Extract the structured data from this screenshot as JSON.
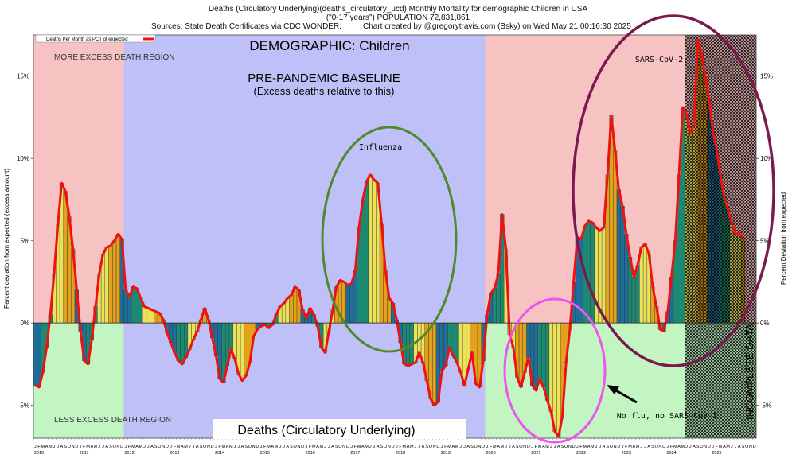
{
  "header": {
    "line1": "Deaths (Circulatory Underlying)(deaths_circulatory_ucd) Monthly Mortality for demographic Children in USA",
    "line2": "(\"0-17 years\") POPULATION 72,831,861",
    "sources": "Sources: State Death Certificates via CDC WONDER.",
    "credit": "Chart created by @gregorytravis.com (Bsky) on Wed May 21 00:16:30 2025"
  },
  "chart_data": {
    "type": "bar",
    "title": "Deaths (Circulatory Underlying)(deaths_circulatory_ucd) Monthly Mortality for demographic Children in USA",
    "ylabel": "Percent deviation from expected (excess amount)",
    "ylabel_right": "Percent Deviation from expected",
    "legend": "Deaths Per Month as PCT of expected",
    "ylim": [
      -7,
      17.5
    ],
    "yticks": [
      -5,
      0,
      5,
      10,
      15
    ],
    "ytick_labels": [
      "-5%",
      "0%",
      "5%",
      "10%",
      "15%"
    ],
    "start": "2010-01",
    "month_letters": [
      "J",
      "F",
      "M",
      "A",
      "M",
      "J",
      "J",
      "A",
      "S",
      "O",
      "N",
      "D"
    ],
    "years": [
      "2010",
      "2011",
      "2012",
      "2013",
      "2014",
      "2015",
      "2016",
      "2017",
      "2018",
      "2019",
      "2020",
      "2021",
      "2022",
      "2023",
      "2024",
      "2025"
    ],
    "values": [
      -3.8,
      -3.9,
      -3.0,
      -1.5,
      0.5,
      3.0,
      6.0,
      8.5,
      8.0,
      6.5,
      4.5,
      2.0,
      -0.5,
      -2.3,
      -2.5,
      -1.0,
      1.0,
      3.0,
      4.2,
      4.6,
      4.7,
      5.0,
      5.4,
      5.1,
      2.0,
      1.6,
      2.2,
      2.1,
      1.5,
      1.0,
      0.9,
      0.8,
      0.7,
      0.6,
      0.2,
      -0.6,
      -1.2,
      -1.8,
      -2.3,
      -2.5,
      -2.1,
      -1.6,
      -1.0,
      -0.5,
      0.2,
      0.9,
      0.2,
      -0.9,
      -2.0,
      -3.4,
      -3.6,
      -2.6,
      -1.6,
      -2.2,
      -3.1,
      -3.5,
      -3.2,
      -2.4,
      -0.8,
      -0.4,
      -0.2,
      -0.1,
      -0.3,
      -0.1,
      0.5,
      1.0,
      1.2,
      1.5,
      1.7,
      2.2,
      2.0,
      0.8,
      0.3,
      0.9,
      0.5,
      -0.2,
      -1.5,
      -1.8,
      -0.5,
      0.8,
      2.2,
      2.6,
      2.5,
      2.3,
      2.4,
      3.2,
      5.8,
      7.5,
      8.6,
      9.0,
      8.7,
      8.5,
      6.0,
      3.2,
      1.5,
      1.2,
      0.2,
      -1.2,
      -2.5,
      -2.6,
      -2.5,
      -2.4,
      -1.8,
      -2.4,
      -3.5,
      -4.6,
      -5.0,
      -4.8,
      -2.9,
      -2.6,
      -1.5,
      -2.0,
      -2.4,
      -3.0,
      -3.8,
      -2.8,
      -1.8,
      -3.7,
      -3.9,
      -2.3,
      0.5,
      1.8,
      2.1,
      3.0,
      6.6,
      4.5,
      -0.7,
      -1.5,
      -3.3,
      -3.9,
      -3.0,
      -2.1,
      -3.8,
      -4.1,
      -3.4,
      -3.9,
      -4.7,
      -5.4,
      -6.6,
      -6.9,
      -5.7,
      -2.4,
      -0.4,
      2.5,
      5.2,
      5.1,
      5.9,
      6.2,
      6.1,
      5.8,
      5.6,
      5.8,
      9.0,
      12.6,
      10.5,
      8.1,
      7.1,
      5.4,
      4.0,
      2.8,
      3.5,
      4.6,
      4.8,
      4.2,
      2.2,
      1.0,
      -0.4,
      -0.5,
      0.7,
      2.8,
      5.0,
      9.0,
      13.1,
      12.7,
      11.5,
      12.1,
      17.2,
      16.4,
      14.9,
      13.6,
      11.6,
      10.5,
      9.0,
      7.6,
      6.9,
      6.1,
      5.4,
      5.5,
      5.2
    ],
    "regions": [
      {
        "label": "MORE EXCESS DEATH REGION",
        "color": "#f7c2c2"
      },
      {
        "label": "LESS EXCESS DEATH REGION",
        "color": "#c2f5c2"
      },
      {
        "label": "PRE-PANDEMIC BASELINE",
        "color": "#bfc0f7"
      }
    ],
    "annotations": {
      "demographic": "DEMOGRAPHIC: Children",
      "baseline_line1": "PRE-PANDEMIC BASELINE",
      "baseline_line2": "(Excess deaths relative to this)",
      "influenza": "Influenza",
      "sars": "SARS-CoV-2",
      "noflu": "No flu, no SARS-CoV-2",
      "incomplete": "INCOMPLETE DATA",
      "more_region": "MORE EXCESS DEATH REGION",
      "less_region": "LESS EXCESS DEATH REGION",
      "metric_box": "Deaths (Circulatory Underlying)"
    },
    "colors": {
      "line": "#ee1111",
      "bar_blue": "#1f6e9a",
      "bar_teal": "#1c8a72",
      "bar_yellow": "#ece25a",
      "bar_orange": "#e3a21c",
      "pink_bg": "#f7c2c2",
      "green_bg": "#c2f5c2",
      "blue_bg": "#bfc0f7",
      "flu_ellipse": "#4f8a2a",
      "sars_ellipse": "#7a1a4e",
      "noflu_ellipse": "#ee55ee"
    }
  }
}
